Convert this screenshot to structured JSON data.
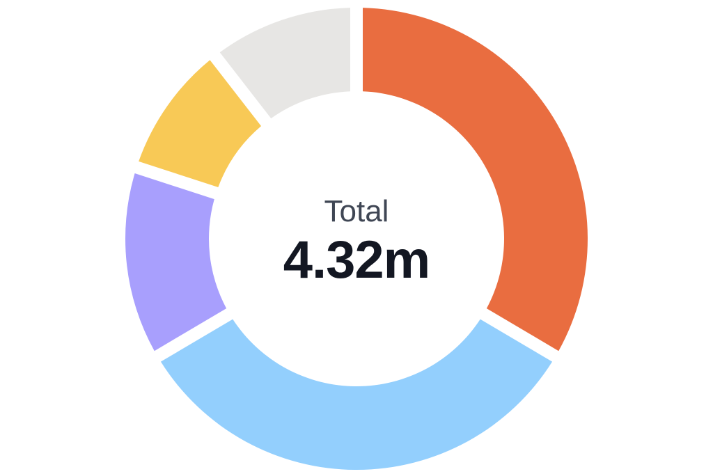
{
  "chart_data": {
    "type": "pie",
    "variant": "donut",
    "center_title": "Total",
    "center_value": "4.32m",
    "slices": [
      {
        "value": 33.5,
        "color": "#e96d40"
      },
      {
        "value": 33.0,
        "color": "#93cffd"
      },
      {
        "value": 13.5,
        "color": "#a89ffd"
      },
      {
        "value": 9.5,
        "color": "#f8c956"
      },
      {
        "value": 10.5,
        "color": "#e7e6e4"
      }
    ]
  }
}
